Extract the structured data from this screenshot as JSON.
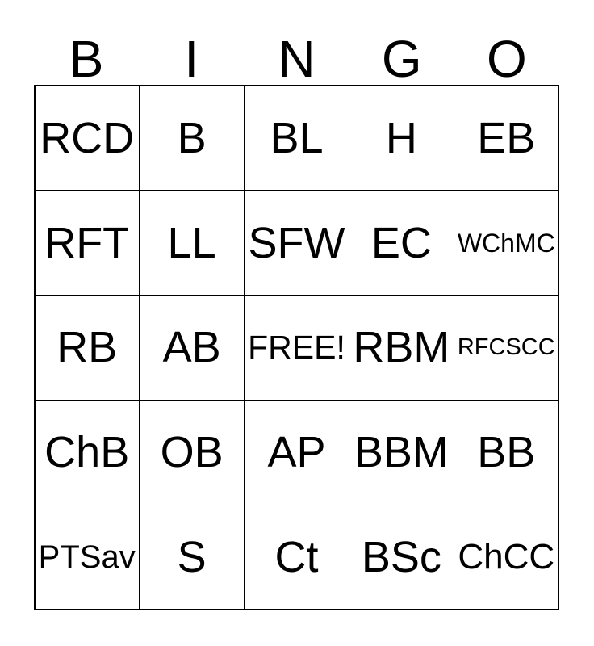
{
  "header": {
    "letters": [
      "B",
      "I",
      "N",
      "G",
      "O"
    ]
  },
  "grid": {
    "rows": [
      [
        "RCD",
        "B",
        "BL",
        "H",
        "EB"
      ],
      [
        "RFT",
        "LL",
        "SFW",
        "EC",
        "WChMC"
      ],
      [
        "RB",
        "AB",
        "FREE!",
        "RBM",
        "RFCSCC"
      ],
      [
        "ChB",
        "OB",
        "AP",
        "BBM",
        "BB"
      ],
      [
        "PTSav",
        "S",
        "Ct",
        "BSc",
        "ChCC"
      ]
    ]
  },
  "colors": {
    "text": "#000000",
    "grid_lines": "#000000",
    "background": "#ffffff"
  }
}
